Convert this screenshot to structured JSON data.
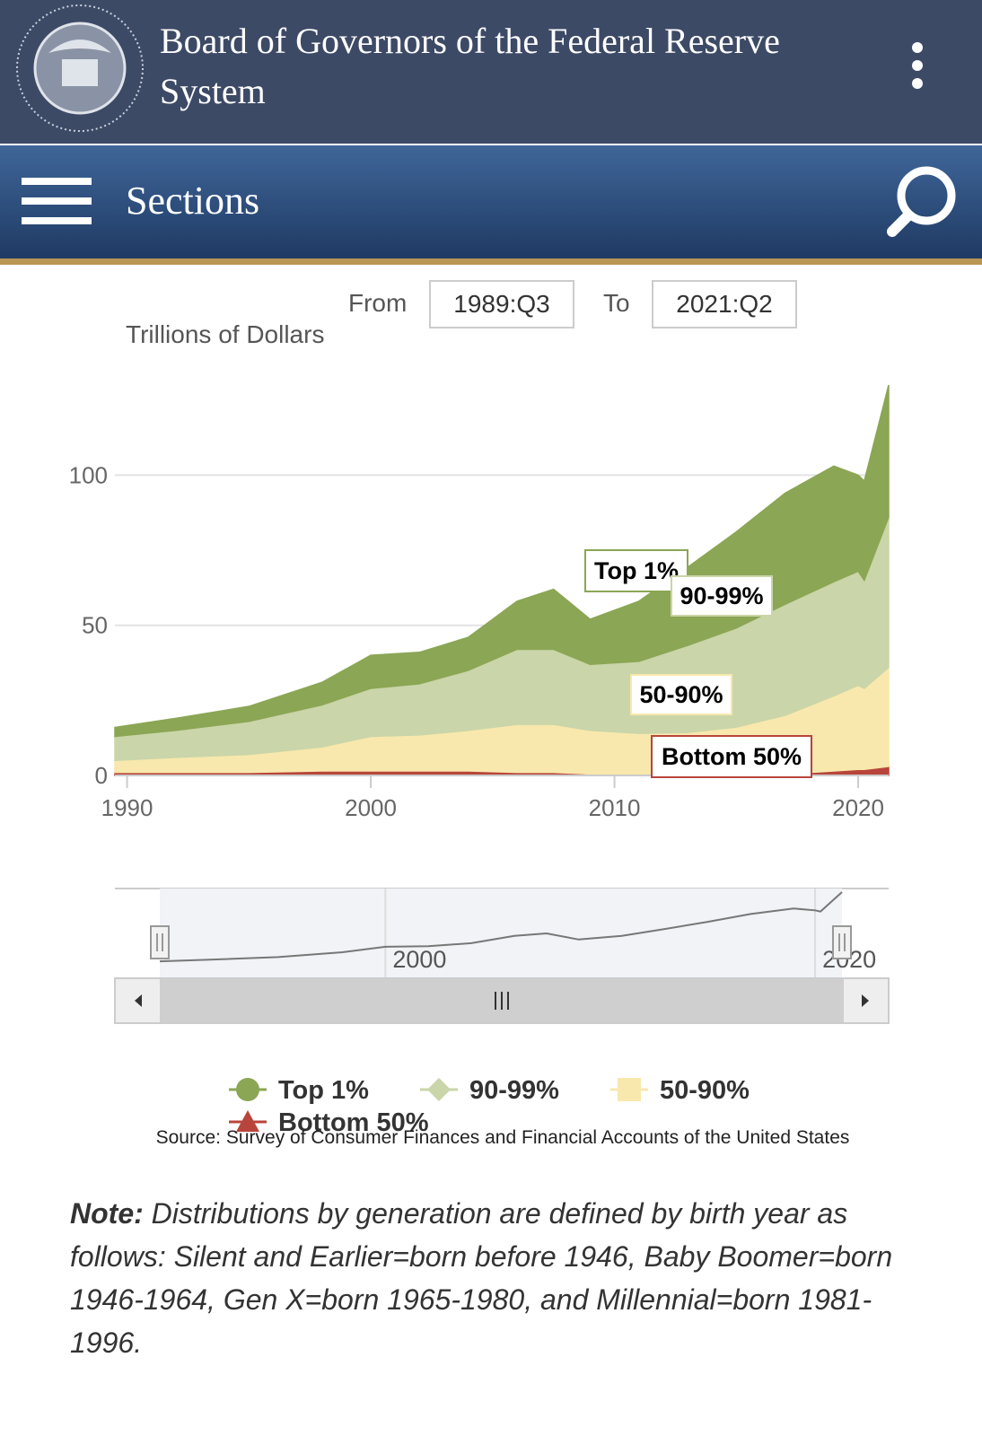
{
  "header": {
    "title": "Board of Governors of the Federal Reserve System",
    "nav": "Sections"
  },
  "range": {
    "from_label": "From",
    "from": "1989:Q3",
    "to_label": "To",
    "to": "2021:Q2"
  },
  "chart_data": {
    "type": "area",
    "stacked": true,
    "y_label": "Trillions of Dollars",
    "x": [
      1989.5,
      1992,
      1995,
      1998,
      2000,
      2002,
      2004,
      2006,
      2007.5,
      2009,
      2011,
      2013,
      2015,
      2017,
      2019,
      2020,
      2020.25,
      2021.25
    ],
    "series": [
      {
        "name": "Top 1%",
        "color": "#8ba654",
        "values": [
          3,
          4,
          5,
          7.5,
          11,
          10.5,
          11,
          16,
          20,
          15,
          20,
          26,
          32,
          37,
          38.5,
          32,
          33,
          44
        ]
      },
      {
        "name": "90-99%",
        "color": "#cad5a9",
        "values": [
          8,
          9,
          11,
          14,
          16,
          17,
          20,
          25,
          25,
          22,
          24,
          29,
          33,
          37,
          38,
          38,
          36,
          50
        ]
      },
      {
        "name": "50-90%",
        "color": "#f8e8ad",
        "values": [
          4,
          5,
          6,
          8,
          11.5,
          12,
          13.5,
          16,
          16,
          14.5,
          13.7,
          14,
          16,
          19.5,
          25,
          28,
          27,
          33
        ]
      },
      {
        "name": "Bottom 50%",
        "color": "#b8453b",
        "values": [
          1,
          1,
          1,
          1.5,
          1.5,
          1.5,
          1.5,
          1,
          1,
          0.5,
          0.3,
          0.3,
          0.1,
          0.5,
          1.5,
          2,
          2,
          3
        ]
      }
    ],
    "xlim": [
      1989.5,
      2021.25
    ],
    "xticks": [
      1990,
      2000,
      2010,
      2020
    ],
    "ylim": [
      0,
      130
    ],
    "yticks": [
      0,
      50,
      100
    ],
    "grid": true
  },
  "source": "Source: Survey of Consumer Finances and Financial Accounts of the United States",
  "note": {
    "label": "Note:",
    "text": "Distributions by generation are defined by birth year as follows: Silent and Earlier=born before 1946, Baby Boomer=born 1946-1964, Gen X=born 1965-1980, and Millennial=born 1981-1996."
  }
}
